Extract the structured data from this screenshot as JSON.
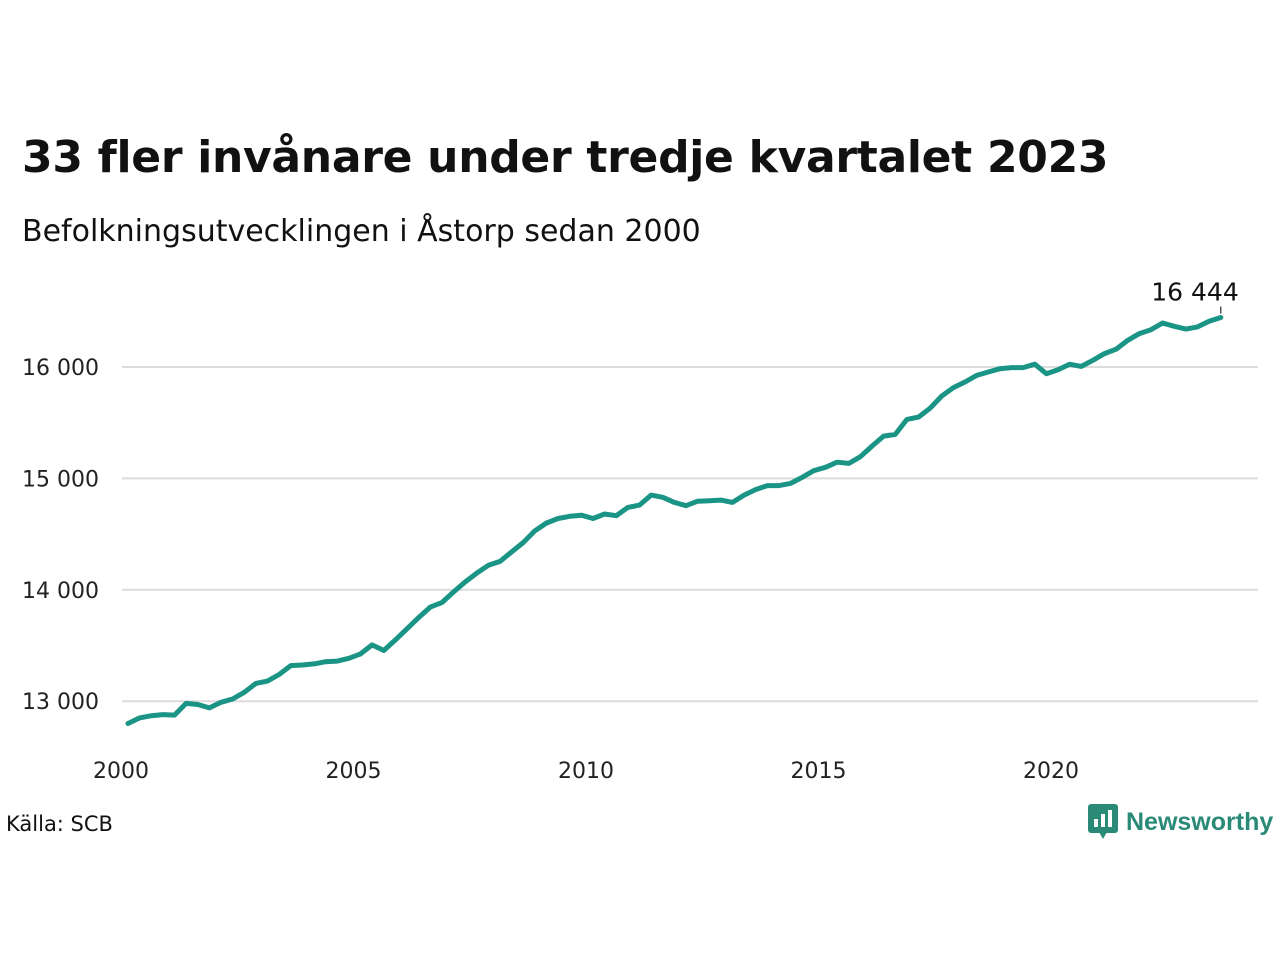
{
  "title": "33 fler invånare under tredje kvartalet 2023",
  "subtitle": "Befolkningsutvecklingen i Åstorp sedan 2000",
  "source": "Källa: SCB",
  "brand": {
    "name": "Newsworthy",
    "icon": "newsworthy-logo-icon",
    "color": "#2a8a77"
  },
  "colors": {
    "line": "#1a9485",
    "grid": "#dcdcdc",
    "text": "#111111"
  },
  "chart_data": {
    "type": "line",
    "title": "33 fler invånare under tredje kvartalet 2023",
    "subtitle": "Befolkningsutvecklingen i Åstorp sedan 2000",
    "xlabel": "",
    "ylabel": "",
    "x_ticks": [
      2000,
      2005,
      2010,
      2015,
      2020
    ],
    "x_tick_labels": [
      "2000",
      "2005",
      "2010",
      "2015",
      "2020"
    ],
    "y_ticks": [
      13000,
      14000,
      15000,
      16000
    ],
    "y_tick_labels": [
      "13 000",
      "14 000",
      "15 000",
      "16 000"
    ],
    "xlim": [
      2000,
      2024.5
    ],
    "ylim": [
      12600,
      16800
    ],
    "grid": true,
    "last_value_label": "16 444",
    "series": [
      {
        "x": [
          2000.0,
          2000.25,
          2000.5,
          2000.75,
          2001.0,
          2001.25,
          2001.5,
          2001.75,
          2002.0,
          2002.25,
          2002.5,
          2002.75,
          2003.0,
          2003.25,
          2003.5,
          2003.75,
          2004.0,
          2004.25,
          2004.5,
          2004.75,
          2005.0,
          2005.25,
          2005.5,
          2005.75,
          2006.0,
          2006.25,
          2006.5,
          2006.75,
          2007.0,
          2007.25,
          2007.5,
          2007.75,
          2008.0,
          2008.25,
          2008.5,
          2008.75,
          2009.0,
          2009.25,
          2009.5,
          2009.75,
          2010.0,
          2010.25,
          2010.5,
          2010.75,
          2011.0,
          2011.25,
          2011.5,
          2011.75,
          2012.0,
          2012.25,
          2012.5,
          2012.75,
          2013.0,
          2013.25,
          2013.5,
          2013.75,
          2014.0,
          2014.25,
          2014.5,
          2014.75,
          2015.0,
          2015.25,
          2015.5,
          2015.75,
          2016.0,
          2016.25,
          2016.5,
          2016.75,
          2017.0,
          2017.25,
          2017.5,
          2017.75,
          2018.0,
          2018.25,
          2018.5,
          2018.75,
          2019.0,
          2019.25,
          2019.5,
          2019.75,
          2020.0,
          2020.25,
          2020.5,
          2020.75,
          2021.0,
          2021.25,
          2021.5,
          2021.75,
          2022.0,
          2022.25,
          2022.5,
          2022.75,
          2023.0,
          2023.25,
          2023.5
        ],
        "values": [
          12800,
          12850,
          12870,
          12880,
          12875,
          12980,
          12970,
          12940,
          12990,
          13020,
          13080,
          13160,
          13180,
          13240,
          13320,
          13325,
          13335,
          13355,
          13360,
          13385,
          13425,
          13505,
          13455,
          13550,
          13650,
          13750,
          13845,
          13885,
          13980,
          14070,
          14150,
          14220,
          14255,
          14340,
          14425,
          14530,
          14600,
          14640,
          14660,
          14670,
          14640,
          14680,
          14665,
          14740,
          14760,
          14850,
          14830,
          14785,
          14755,
          14795,
          14800,
          14805,
          14785,
          14850,
          14900,
          14935,
          14935,
          14955,
          15010,
          15070,
          15100,
          15145,
          15135,
          15195,
          15290,
          15380,
          15395,
          15530,
          15550,
          15630,
          15740,
          15815,
          15865,
          15925,
          15955,
          15985,
          15995,
          15995,
          16025,
          15940,
          15975,
          16025,
          16005,
          16060,
          16120,
          16160,
          16240,
          16300,
          16335,
          16395,
          16365,
          16340,
          16360,
          16410,
          16444
        ]
      }
    ]
  }
}
